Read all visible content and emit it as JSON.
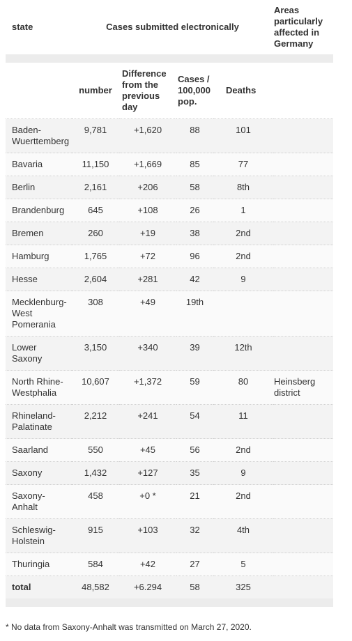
{
  "header": {
    "state": "state",
    "cases": "Cases submitted electronically",
    "areas": "Areas particularly affected in Germany"
  },
  "subheader": {
    "number": "number",
    "difference": "Difference from the previous day",
    "per_100k": "Cases / 100,000 pop.",
    "deaths": "Deaths"
  },
  "rows": [
    [
      "Baden-Wuerttemberg",
      "9,781",
      "+1,620",
      "88",
      "101"
    ],
    [
      "Bavaria",
      "11,150",
      "+1,669",
      "85",
      "77"
    ],
    [
      "Berlin",
      "2,161",
      "+206",
      "58",
      "8th"
    ],
    [
      "Brandenburg",
      "645",
      "+108",
      "26",
      "1"
    ],
    [
      "Bremen",
      "260",
      "+19",
      "38",
      "2nd"
    ],
    [
      "Hamburg",
      "1,765",
      "+72",
      "96",
      "2nd"
    ],
    [
      "Hesse",
      "2,604",
      "+281",
      "42",
      "9"
    ],
    [
      "Mecklenburg-West Pomerania",
      "308",
      "+49",
      "19th"
    ],
    [
      "Lower Saxony",
      "3,150",
      "+340",
      "39",
      "12th"
    ],
    [
      "North Rhine-Westphalia",
      "10,607",
      "+1,372",
      "59",
      "80",
      "Heinsberg district"
    ],
    [
      "Rhineland-Palatinate",
      "2,212",
      "+241",
      "54",
      "11"
    ],
    [
      "Saarland",
      "550",
      "+45",
      "56",
      "2nd"
    ],
    [
      "Saxony",
      "1,432",
      "+127",
      "35",
      "9"
    ],
    [
      "Saxony-Anhalt",
      "458",
      "+0 *",
      "21",
      "2nd"
    ],
    [
      "Schleswig-Holstein",
      "915",
      "+103",
      "32",
      "4th"
    ],
    [
      "Thuringia",
      "584",
      "+42",
      "27",
      "5"
    ],
    [
      "total",
      "48,582",
      "+6.294",
      "58",
      "325"
    ]
  ],
  "footnote": "* No data from Saxony-Anhalt was transmitted on March 27, 2020."
}
